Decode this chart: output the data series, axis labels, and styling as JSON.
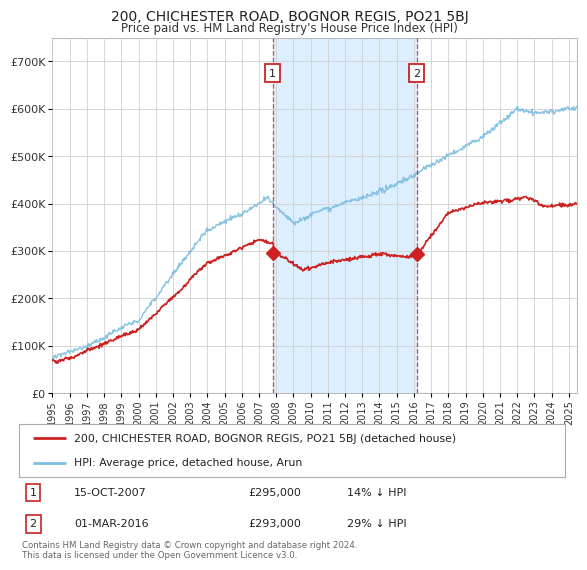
{
  "title": "200, CHICHESTER ROAD, BOGNOR REGIS, PO21 5BJ",
  "subtitle": "Price paid vs. HM Land Registry's House Price Index (HPI)",
  "legend_entry1": "200, CHICHESTER ROAD, BOGNOR REGIS, PO21 5BJ (detached house)",
  "legend_entry2": "HPI: Average price, detached house, Arun",
  "annotation1_label": "1",
  "annotation1_date": "15-OCT-2007",
  "annotation1_price": "£295,000",
  "annotation1_hpi": "14% ↓ HPI",
  "annotation2_label": "2",
  "annotation2_date": "01-MAR-2016",
  "annotation2_price": "£293,000",
  "annotation2_hpi": "29% ↓ HPI",
  "footer": "Contains HM Land Registry data © Crown copyright and database right 2024.\nThis data is licensed under the Open Government Licence v3.0.",
  "hpi_color": "#7bbde0",
  "price_color": "#cc2222",
  "marker1_x": 2007.79,
  "marker1_y": 295000,
  "marker2_x": 2016.17,
  "marker2_y": 293000,
  "vline1_x": 2007.79,
  "vline2_x": 2016.17,
  "ylim_min": 0,
  "ylim_max": 750000,
  "xlim_min": 1995,
  "xlim_max": 2025.5,
  "yticks": [
    0,
    100000,
    200000,
    300000,
    400000,
    500000,
    600000,
    700000
  ],
  "ytick_labels": [
    "£0",
    "£100K",
    "£200K",
    "£300K",
    "£400K",
    "£500K",
    "£600K",
    "£700K"
  ],
  "xtick_years": [
    1995,
    1996,
    1997,
    1998,
    1999,
    2000,
    2001,
    2002,
    2003,
    2004,
    2005,
    2006,
    2007,
    2008,
    2009,
    2010,
    2011,
    2012,
    2013,
    2014,
    2015,
    2016,
    2017,
    2018,
    2019,
    2020,
    2021,
    2022,
    2023,
    2024,
    2025
  ],
  "background_color": "#ffffff",
  "plot_bg_color": "#ffffff",
  "grid_color": "#d0d0d0",
  "span_color": "#ddeeff"
}
